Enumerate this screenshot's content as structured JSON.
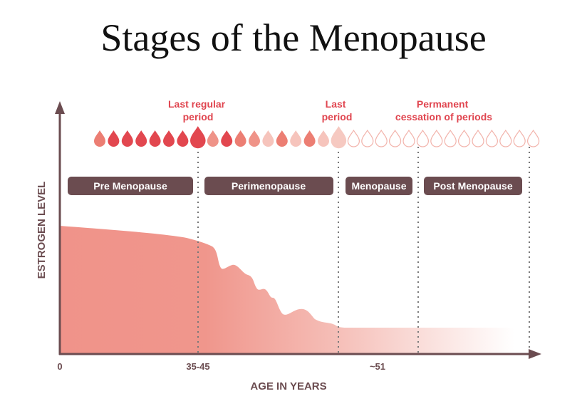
{
  "title": "Stages of the Menopause",
  "annotations": {
    "last_regular_period": [
      "Last regular",
      "period"
    ],
    "last_period": [
      "Last",
      "period"
    ],
    "permanent_cessation": [
      "Permanent",
      "cessation of periods"
    ]
  },
  "stages": [
    "Pre Menopause",
    "Perimenopause",
    "Menopause",
    "Post Menopause"
  ],
  "axes": {
    "ylabel": "ESTROGEN LEVEL",
    "xlabel": "AGE IN YEARS",
    "xticks": [
      "0",
      "35-45",
      "~51"
    ]
  },
  "drops": [
    "medium",
    "dark",
    "dark",
    "dark",
    "dark",
    "dark",
    "dark",
    "big-dark",
    "light",
    "dark",
    "medium",
    "light",
    "pale",
    "medium",
    "pale",
    "medium",
    "pale",
    "big-pale",
    "outline",
    "outline",
    "outline",
    "outline",
    "outline",
    "outline",
    "outline",
    "outline",
    "outline",
    "outline",
    "outline",
    "outline",
    "outline",
    "outline"
  ],
  "colors": {
    "accent": "#e0454f",
    "stage_box": "#6b4c50",
    "axis": "#6b4c50",
    "curve": "#f0938a"
  }
}
